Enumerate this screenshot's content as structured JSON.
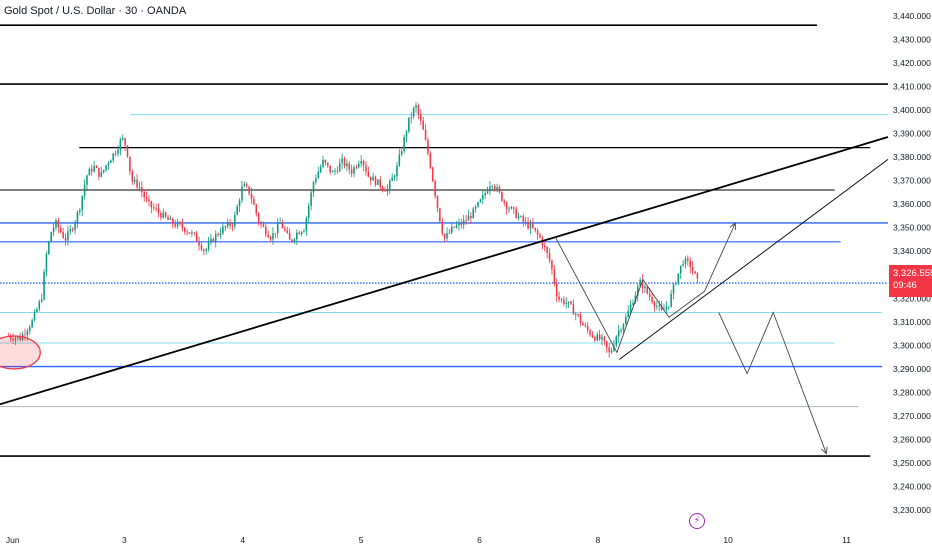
{
  "header": {
    "title": "Gold Spot / U.S. Dollar · 30 · OANDA"
  },
  "price_marker": {
    "price": "3,326.555",
    "countdown": "09:46",
    "color": "#f23645"
  },
  "colors": {
    "up": "#089981",
    "down": "#f23645",
    "black_line": "#000000",
    "blue_line": "#2962ff",
    "cyan_line": "#80deea",
    "grey_line": "#b2b5be"
  },
  "icons": {
    "event": "lightning-bolt-icon"
  },
  "chart_data": {
    "type": "candlestick",
    "title": "Gold Spot / U.S. Dollar · 30 · OANDA",
    "ylim": [
      3225,
      3445
    ],
    "y_ticks": [
      3440,
      3430,
      3420,
      3410,
      3400,
      3390,
      3380,
      3370,
      3360,
      3350,
      3340,
      3330,
      3320,
      3310,
      3300,
      3290,
      3280,
      3270,
      3260,
      3250,
      3240,
      3230
    ],
    "y_tick_labels": [
      "3,440.000",
      "3,430.000",
      "3,420.000",
      "3,410.000",
      "3,400.000",
      "3,390.000",
      "3,380.000",
      "3,370.000",
      "3,360.000",
      "3,350.000",
      "3,340.000",
      "3,330.000",
      "3,320.000",
      "3,310.000",
      "3,300.000",
      "3,290.000",
      "3,280.000",
      "3,270.000",
      "3,260.000",
      "3,250.000",
      "3,240.000",
      "3,230.000"
    ],
    "x_ticks": [
      {
        "label": "Jun",
        "x": 0.0
      },
      {
        "label": "3",
        "x": 1.0
      },
      {
        "label": "4",
        "x": 2.0
      },
      {
        "label": "5",
        "x": 3.0
      },
      {
        "label": "6",
        "x": 4.0
      },
      {
        "label": "8",
        "x": 5.0
      },
      {
        "label": "10",
        "x": 6.1
      },
      {
        "label": "11",
        "x": 7.1
      }
    ],
    "xlim": [
      -0.05,
      7.45
    ],
    "price_path": [
      [
        0.0,
        3304
      ],
      [
        0.12,
        3303
      ],
      [
        0.22,
        3310
      ],
      [
        0.3,
        3320
      ],
      [
        0.34,
        3338
      ],
      [
        0.38,
        3348
      ],
      [
        0.42,
        3352
      ],
      [
        0.5,
        3345
      ],
      [
        0.56,
        3350
      ],
      [
        0.62,
        3358
      ],
      [
        0.68,
        3372
      ],
      [
        0.74,
        3376
      ],
      [
        0.8,
        3372
      ],
      [
        0.86,
        3378
      ],
      [
        0.92,
        3382
      ],
      [
        0.98,
        3388
      ],
      [
        1.02,
        3384
      ],
      [
        1.06,
        3370
      ],
      [
        1.12,
        3368
      ],
      [
        1.2,
        3360
      ],
      [
        1.3,
        3356
      ],
      [
        1.4,
        3352
      ],
      [
        1.5,
        3350
      ],
      [
        1.6,
        3346
      ],
      [
        1.68,
        3340
      ],
      [
        1.76,
        3346
      ],
      [
        1.84,
        3350
      ],
      [
        1.92,
        3352
      ],
      [
        2.0,
        3368
      ],
      [
        2.06,
        3365
      ],
      [
        2.14,
        3352
      ],
      [
        2.24,
        3346
      ],
      [
        2.32,
        3352
      ],
      [
        2.4,
        3344
      ],
      [
        2.46,
        3348
      ],
      [
        2.52,
        3350
      ],
      [
        2.6,
        3370
      ],
      [
        2.68,
        3378
      ],
      [
        2.76,
        3373
      ],
      [
        2.84,
        3378
      ],
      [
        2.92,
        3374
      ],
      [
        3.0,
        3380
      ],
      [
        3.06,
        3372
      ],
      [
        3.14,
        3369
      ],
      [
        3.22,
        3366
      ],
      [
        3.3,
        3375
      ],
      [
        3.4,
        3395
      ],
      [
        3.46,
        3402
      ],
      [
        3.52,
        3392
      ],
      [
        3.58,
        3378
      ],
      [
        3.64,
        3360
      ],
      [
        3.7,
        3345
      ],
      [
        3.78,
        3350
      ],
      [
        3.86,
        3352
      ],
      [
        3.94,
        3356
      ],
      [
        4.02,
        3362
      ],
      [
        4.1,
        3370
      ],
      [
        4.16,
        3365
      ],
      [
        4.22,
        3360
      ],
      [
        4.3,
        3356
      ],
      [
        4.38,
        3352
      ],
      [
        4.44,
        3350
      ],
      [
        4.52,
        3345
      ],
      [
        4.6,
        3335
      ],
      [
        4.66,
        3320
      ],
      [
        4.74,
        3318
      ],
      [
        4.82,
        3313
      ],
      [
        4.88,
        3308
      ],
      [
        4.96,
        3304
      ],
      [
        5.04,
        3302
      ],
      [
        5.1,
        3296
      ],
      [
        5.16,
        3305
      ],
      [
        5.24,
        3312
      ],
      [
        5.3,
        3320
      ],
      [
        5.36,
        3327
      ],
      [
        5.42,
        3322
      ],
      [
        5.48,
        3318
      ],
      [
        5.54,
        3314
      ],
      [
        5.6,
        3318
      ],
      [
        5.66,
        3328
      ],
      [
        5.72,
        3336
      ],
      [
        5.78,
        3334
      ],
      [
        5.84,
        3327
      ]
    ],
    "horizontal_lines": [
      {
        "price": 3436,
        "x0": -0.05,
        "x1": 6.85,
        "color": "black",
        "width": 1.6
      },
      {
        "price": 3411,
        "x0": -0.05,
        "x1": 7.45,
        "color": "black",
        "width": 1.6
      },
      {
        "price": 3398,
        "x0": 1.05,
        "x1": 7.45,
        "color": "cyan",
        "width": 1.0
      },
      {
        "price": 3384,
        "x0": 0.62,
        "x1": 7.3,
        "color": "black",
        "width": 1.2
      },
      {
        "price": 3366,
        "x0": -0.05,
        "x1": 7.0,
        "color": "black",
        "width": 0.9
      },
      {
        "price": 3352,
        "x0": -0.05,
        "x1": 7.45,
        "color": "blue",
        "width": 1.4
      },
      {
        "price": 3344,
        "x0": -0.05,
        "x1": 7.05,
        "color": "blue",
        "width": 1.1
      },
      {
        "price": 3326.5,
        "x0": -0.05,
        "x1": 7.45,
        "color": "blue",
        "width": 1.4
      },
      {
        "price": 3314,
        "x0": -0.05,
        "x1": 7.4,
        "color": "cyan",
        "width": 1.0
      },
      {
        "price": 3301,
        "x0": -0.05,
        "x1": 7.0,
        "color": "cyan",
        "width": 1.0
      },
      {
        "price": 3291,
        "x0": -0.05,
        "x1": 7.4,
        "color": "blue",
        "width": 1.4
      },
      {
        "price": 3274,
        "x0": -0.05,
        "x1": 7.2,
        "color": "grey",
        "width": 1.0
      },
      {
        "price": 3253,
        "x0": -0.05,
        "x1": 7.3,
        "color": "black",
        "width": 1.6
      }
    ],
    "trend_lines": [
      {
        "from": [
          -0.05,
          3275
        ],
        "to": [
          7.45,
          3388.5
        ],
        "color": "black",
        "width": 1.8
      },
      {
        "from": [
          5.18,
          3294
        ],
        "to": [
          7.45,
          3379
        ],
        "color": "black",
        "width": 0.9
      }
    ],
    "projection_paths": [
      [
        [
          4.64,
          3346
        ],
        [
          5.16,
          3297
        ],
        [
          5.38,
          3328
        ],
        [
          5.6,
          3312
        ],
        [
          5.9,
          3323
        ],
        [
          6.16,
          3352
        ]
      ],
      [
        [
          6.02,
          3314
        ],
        [
          6.26,
          3288
        ],
        [
          6.48,
          3314
        ],
        [
          6.93,
          3254
        ]
      ]
    ],
    "ellipse": {
      "cx": 0.07,
      "cy": 3297,
      "rx": 0.22,
      "ry": 7
    },
    "last_price": 3326.555
  }
}
